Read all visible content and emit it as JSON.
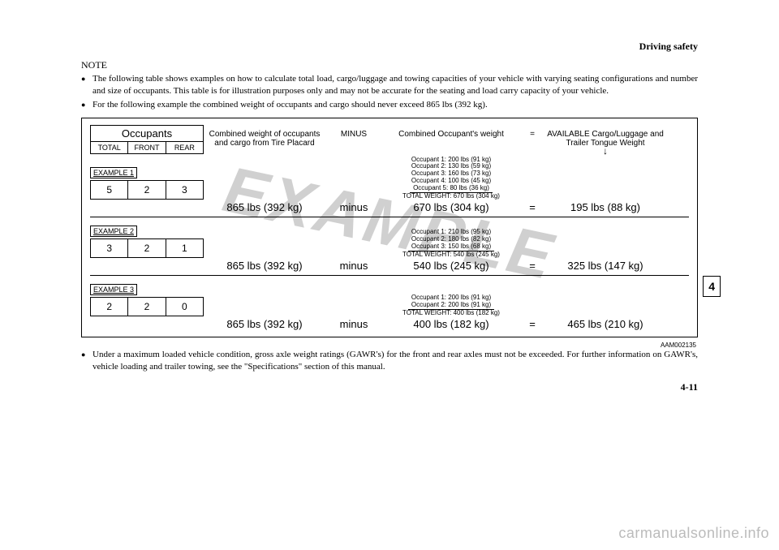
{
  "header": {
    "section": "Driving safety"
  },
  "note": {
    "label": "NOTE",
    "items": [
      "The following table shows examples on how to calculate total load, cargo/luggage and towing capacities of your vehicle with varying seating configurations and number and size of occupants. This table is for illustration purposes only and may not be accurate for the seating and load carry capacity of your vehicle.",
      "For the following example the combined weight of occupants and cargo should never exceed 865 lbs (392 kg)."
    ]
  },
  "diagram": {
    "watermark": "EXAMPLE",
    "occupants_title": "Occupants",
    "col_headers": {
      "total": "TOTAL",
      "front": "FRONT",
      "rear": "REAR"
    },
    "header_combined": "Combined weight of occupants and cargo from Tire Placard",
    "header_minus": "MINUS",
    "header_occweight": "Combined Occupant's weight",
    "header_eq": "=",
    "header_available": "AVAILABLE Cargo/Luggage and Trailer Tongue Weight",
    "examples": [
      {
        "label": "EXAMPLE 1",
        "total": "5",
        "front": "2",
        "rear": "3",
        "combined": "865 lbs (392 kg)",
        "minus": "minus",
        "breakdown": [
          "Occupant 1: 200 lbs (91 kg)",
          "Occupant 2: 130 lbs (59 kg)",
          "Occupant 3: 160 lbs (73 kg)",
          "Occupant 4: 100 lbs (45 kg)",
          "Occupant 5:  80 lbs (36 kg)"
        ],
        "breakdown_total": "TOTAL WEIGHT: 670 lbs (304 kg)",
        "occ_weight": "670 lbs (304 kg)",
        "eq": "=",
        "available": "195 lbs (88 kg)"
      },
      {
        "label": "EXAMPLE 2",
        "total": "3",
        "front": "2",
        "rear": "1",
        "combined": "865 lbs (392 kg)",
        "minus": "minus",
        "breakdown": [
          "Occupant 1: 210 lbs (95 kg)",
          "Occupant 2: 180 lbs (82 kg)",
          "Occupant 3: 150 lbs (68 kg)"
        ],
        "breakdown_total": "TOTAL WEIGHT: 540 lbs (245 kg)",
        "occ_weight": "540 lbs (245 kg)",
        "eq": "=",
        "available": "325 lbs (147 kg)"
      },
      {
        "label": "EXAMPLE 3",
        "total": "2",
        "front": "2",
        "rear": "0",
        "combined": "865 lbs (392 kg)",
        "minus": "minus",
        "breakdown": [
          "Occupant 1: 200 lbs (91 kg)",
          "Occupant 2: 200 lbs (91 kg)"
        ],
        "breakdown_total": "TOTAL WEIGHT: 400 lbs (182 kg)",
        "occ_weight": "400 lbs (182 kg)",
        "eq": "=",
        "available": "465 lbs (210 kg)"
      }
    ],
    "ref_code": "AAM002135"
  },
  "footer_note": "Under a maximum loaded vehicle condition, gross axle weight ratings (GAWR's) for the front and rear axles must not be exceeded. For further information on GAWR's, vehicle loading and trailer towing, see the \"Specifications\" section of this manual.",
  "side_tab": "4",
  "page_number": "4-11",
  "site_watermark": "carmanualsonline.info"
}
